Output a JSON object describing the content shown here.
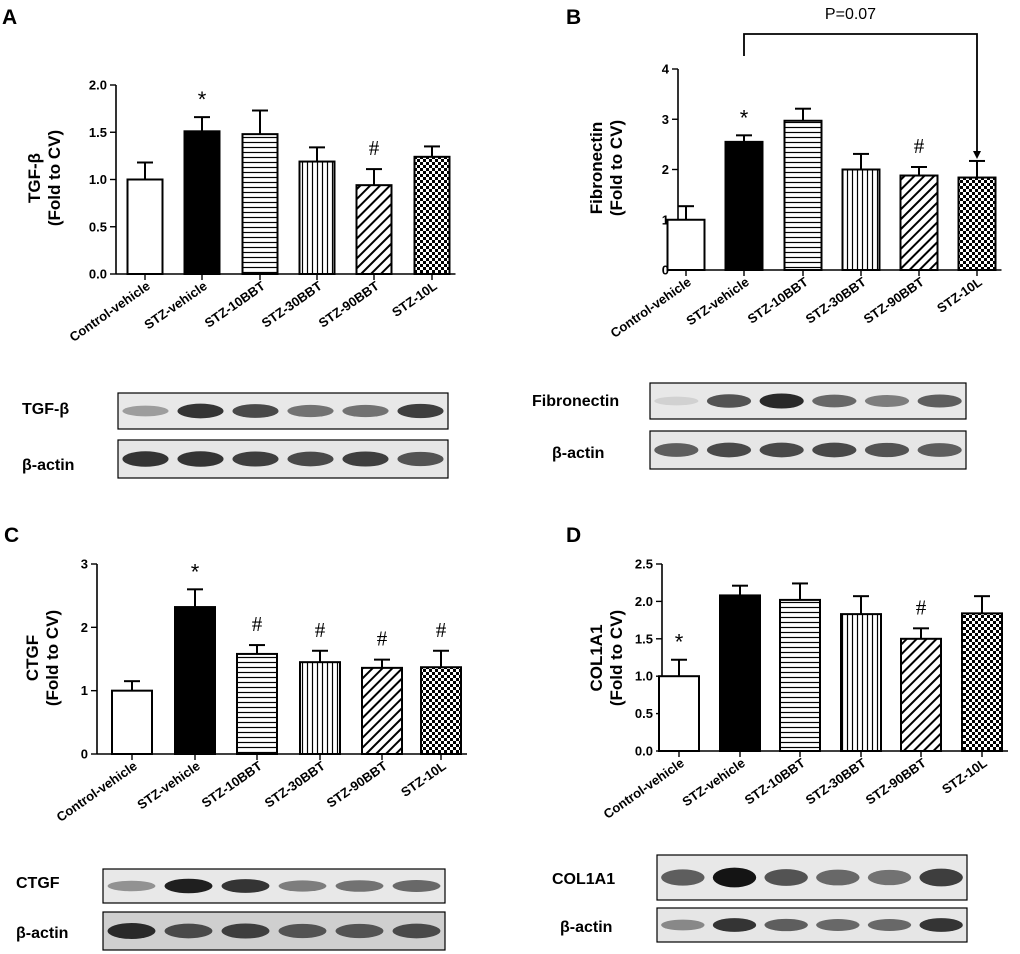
{
  "colors": {
    "bar_fill": "#ffffff",
    "bar_stroke": "#000000",
    "solid": "#000000"
  },
  "chart_data": [
    {
      "type": "bar",
      "panel": "A",
      "ylabel_line1": "TGF-β",
      "ylabel_line2": "(Fold to CV)",
      "ylim": [
        0,
        2.0
      ],
      "yticks": [
        "0.0",
        "0.5",
        "1.0",
        "1.5",
        "2.0"
      ],
      "categories": [
        "Control-vehicle",
        "STZ-vehicle",
        "STZ-10BBT",
        "STZ-30BBT",
        "STZ-90BBT",
        "STZ-10L"
      ],
      "values": [
        1.0,
        1.51,
        1.48,
        1.19,
        0.94,
        1.24
      ],
      "errors": [
        0.18,
        0.15,
        0.25,
        0.15,
        0.17,
        0.11
      ],
      "patterns": [
        "open",
        "solid",
        "horizontal",
        "vertical",
        "diagonal",
        "checker"
      ],
      "annotations": [
        "",
        "*",
        "",
        "",
        "#",
        ""
      ],
      "blots": [
        {
          "label": "TGF-β"
        },
        {
          "label": "β-actin"
        }
      ]
    },
    {
      "type": "bar",
      "panel": "B",
      "ylabel_line1": "Fibronectin",
      "ylabel_line2": "(Fold to CV)",
      "ylim": [
        0,
        4
      ],
      "yticks": [
        "0",
        "1",
        "2",
        "3",
        "4"
      ],
      "categories": [
        "Control-vehicle",
        "STZ-vehicle",
        "STZ-10BBT",
        "STZ-30BBT",
        "STZ-90BBT",
        "STZ-10L"
      ],
      "values": [
        1.0,
        2.55,
        2.97,
        2.0,
        1.88,
        1.84
      ],
      "errors": [
        0.27,
        0.13,
        0.24,
        0.31,
        0.17,
        0.33
      ],
      "patterns": [
        "open",
        "solid",
        "horizontal",
        "vertical",
        "diagonal",
        "checker"
      ],
      "annotations": [
        "",
        "*",
        "",
        "",
        "#",
        ""
      ],
      "comparison": {
        "label": "P=0.07",
        "from": 1,
        "to": 5
      },
      "blots": [
        {
          "label": "Fibronectin"
        },
        {
          "label": "β-actin"
        }
      ]
    },
    {
      "type": "bar",
      "panel": "C",
      "ylabel_line1": "CTGF",
      "ylabel_line2": "(Fold to CV)",
      "ylim": [
        0,
        3
      ],
      "yticks": [
        "0",
        "1",
        "2",
        "3"
      ],
      "categories": [
        "Control-vehicle",
        "STZ-vehicle",
        "STZ-10BBT",
        "STZ-30BBT",
        "STZ-90BBT",
        "STZ-10L"
      ],
      "values": [
        1.0,
        2.32,
        1.58,
        1.45,
        1.36,
        1.37
      ],
      "errors": [
        0.15,
        0.28,
        0.14,
        0.18,
        0.13,
        0.26
      ],
      "patterns": [
        "open",
        "solid",
        "horizontal",
        "vertical",
        "diagonal",
        "checker"
      ],
      "annotations": [
        "",
        "*",
        "#",
        "#",
        "#",
        "#"
      ],
      "blots": [
        {
          "label": "CTGF"
        },
        {
          "label": "β-actin"
        }
      ]
    },
    {
      "type": "bar",
      "panel": "D",
      "ylabel_line1": "COL1A1",
      "ylabel_line2": "(Fold to CV)",
      "ylim": [
        0,
        2.5
      ],
      "yticks": [
        "0.0",
        "0.5",
        "1.0",
        "1.5",
        "2.0",
        "2.5"
      ],
      "categories": [
        "Control-vehicle",
        "STZ-vehicle",
        "STZ-10BBT",
        "STZ-30BBT",
        "STZ-90BBT",
        "STZ-10L"
      ],
      "values": [
        1.0,
        2.08,
        2.02,
        1.83,
        1.5,
        1.84
      ],
      "errors": [
        0.22,
        0.13,
        0.22,
        0.24,
        0.14,
        0.23
      ],
      "patterns": [
        "open",
        "solid",
        "horizontal",
        "vertical",
        "diagonal",
        "checker"
      ],
      "annotations": [
        "*",
        "",
        "",
        "",
        "#",
        ""
      ],
      "blots": [
        {
          "label": "COL1A1"
        },
        {
          "label": "β-actin"
        }
      ]
    }
  ]
}
